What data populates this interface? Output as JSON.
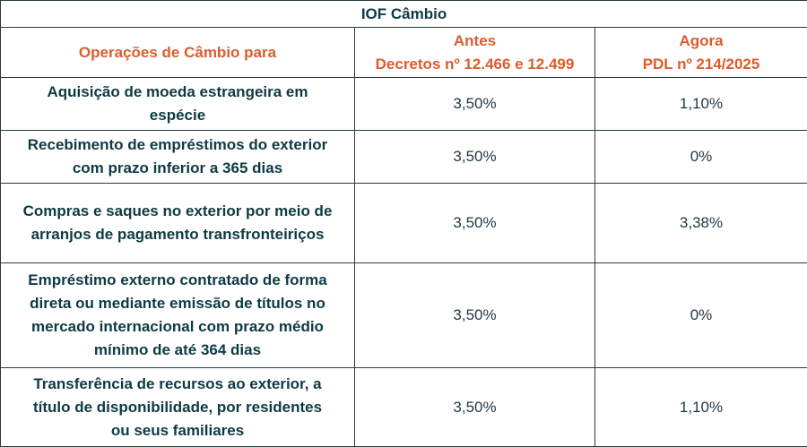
{
  "table": {
    "title": "IOF Câmbio",
    "headers": {
      "operations": "Operações de Câmbio para",
      "before_line1": "Antes",
      "before_line2": "Decretos nº 12.466 e 12.499",
      "now_line1": "Agora",
      "now_line2": "PDL nº 214/2025"
    },
    "rows": [
      {
        "operation_lines": [
          "Aquisição de moeda estrangeira em",
          "espécie"
        ],
        "before": "3,50%",
        "now": "1,10%"
      },
      {
        "operation_lines": [
          "Recebimento de empréstimos do exterior",
          "com prazo inferior a 365 dias"
        ],
        "before": "3,50%",
        "now": "0%"
      },
      {
        "operation_lines": [
          "Compras e saques no exterior por meio de",
          "arranjos de pagamento transfronteiriços"
        ],
        "before": "3,50%",
        "now": "3,38%"
      },
      {
        "operation_lines": [
          "Empréstimo externo contratado de forma",
          "direta ou mediante emissão de títulos no",
          "mercado internacional com prazo médio",
          "mínimo de até 364 dias"
        ],
        "before": "3,50%",
        "now": "0%"
      },
      {
        "operation_lines": [
          "Transferência de recursos ao exterior, a",
          "título de disponibilidade, por residentes",
          "ou seus familiares"
        ],
        "before": "3,50%",
        "now": "1,10%"
      }
    ]
  }
}
